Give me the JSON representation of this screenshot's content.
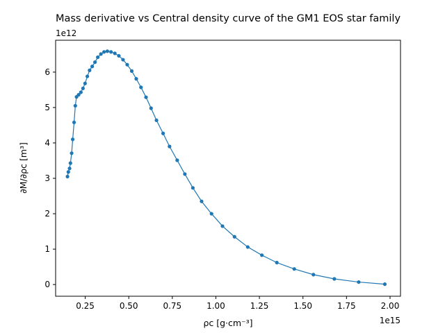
{
  "chart_data": {
    "type": "line",
    "title": "Mass derivative vs Central density curve of the GM1 EOS star family",
    "xlabel": "ρc [g·cm⁻³]",
    "ylabel": "∂M/∂ρc [m³]",
    "x_scale_text": "1e15",
    "y_scale_text": "1e12",
    "x_multiplier": 1000000000000000.0,
    "y_multiplier": 1000000000000.0,
    "xlim": [
      80000000000000.0,
      2060000000000000.0
    ],
    "ylim": [
      -330000000000.0,
      6900000000000.0
    ],
    "x_ticks": [
      250000000000000.0,
      500000000000000.0,
      750000000000000.0,
      1000000000000000.0,
      1250000000000000.0,
      1500000000000000.0,
      1750000000000000.0,
      2000000000000000.0
    ],
    "x_tick_labels": [
      "0.25",
      "0.50",
      "0.75",
      "1.00",
      "1.25",
      "1.50",
      "1.75",
      "2.00"
    ],
    "y_ticks": [
      0,
      1000000000000.0,
      2000000000000.0,
      3000000000000.0,
      4000000000000.0,
      5000000000000.0,
      6000000000000.0
    ],
    "y_tick_labels": [
      "0",
      "1",
      "2",
      "3",
      "4",
      "5",
      "6"
    ],
    "grid": false,
    "legend": "none",
    "series": [
      {
        "color": "#1f77b4",
        "marker": "circle",
        "x": [
          148000000000000.0,
          153000000000000.0,
          160000000000000.0,
          165000000000000.0,
          172000000000000.0,
          178000000000000.0,
          186000000000000.0,
          193000000000000.0,
          200000000000000.0,
          212000000000000.0,
          225000000000000.0,
          237000000000000.0,
          249000000000000.0,
          262000000000000.0,
          275000000000000.0,
          290000000000000.0,
          306000000000000.0,
          322000000000000.0,
          340000000000000.0,
          358000000000000.0,
          377000000000000.0,
          398000000000000.0,
          420000000000000.0,
          443000000000000.0,
          467000000000000.0,
          491000000000000.0,
          517000000000000.0,
          543000000000000.0,
          570000000000000.0,
          599000000000000.0,
          628000000000000.0,
          659000000000000.0,
          697000000000000.0,
          734000000000000.0,
          778000000000000.0,
          822000000000000.0,
          868000000000000.0,
          918000000000000.0,
          975000000000000.0,
          1038000000000000.0,
          1107000000000000.0,
          1183000000000000.0,
          1264000000000000.0,
          1350000000000000.0,
          1450000000000000.0,
          1560000000000000.0,
          1680000000000000.0,
          1820000000000000.0,
          1970000000000000.0
        ],
        "y": [
          3050000000000.0,
          3180000000000.0,
          3280000000000.0,
          3430000000000.0,
          3710000000000.0,
          4100000000000.0,
          4580000000000.0,
          5050000000000.0,
          5300000000000.0,
          5360000000000.0,
          5430000000000.0,
          5540000000000.0,
          5680000000000.0,
          5880000000000.0,
          6050000000000.0,
          6160000000000.0,
          6280000000000.0,
          6420000000000.0,
          6510000000000.0,
          6570000000000.0,
          6590000000000.0,
          6570000000000.0,
          6530000000000.0,
          6460000000000.0,
          6350000000000.0,
          6210000000000.0,
          6030000000000.0,
          5810000000000.0,
          5570000000000.0,
          5290000000000.0,
          4980000000000.0,
          4640000000000.0,
          4270000000000.0,
          3900000000000.0,
          3510000000000.0,
          3120000000000.0,
          2730000000000.0,
          2350000000000.0,
          2000000000000.0,
          1650000000000.0,
          1350000000000.0,
          1060000000000.0,
          830000000000.0,
          620000000000.0,
          440000000000.0,
          280000000000.0,
          160000000000.0,
          70000000000.0,
          10000000000.0
        ]
      }
    ]
  }
}
